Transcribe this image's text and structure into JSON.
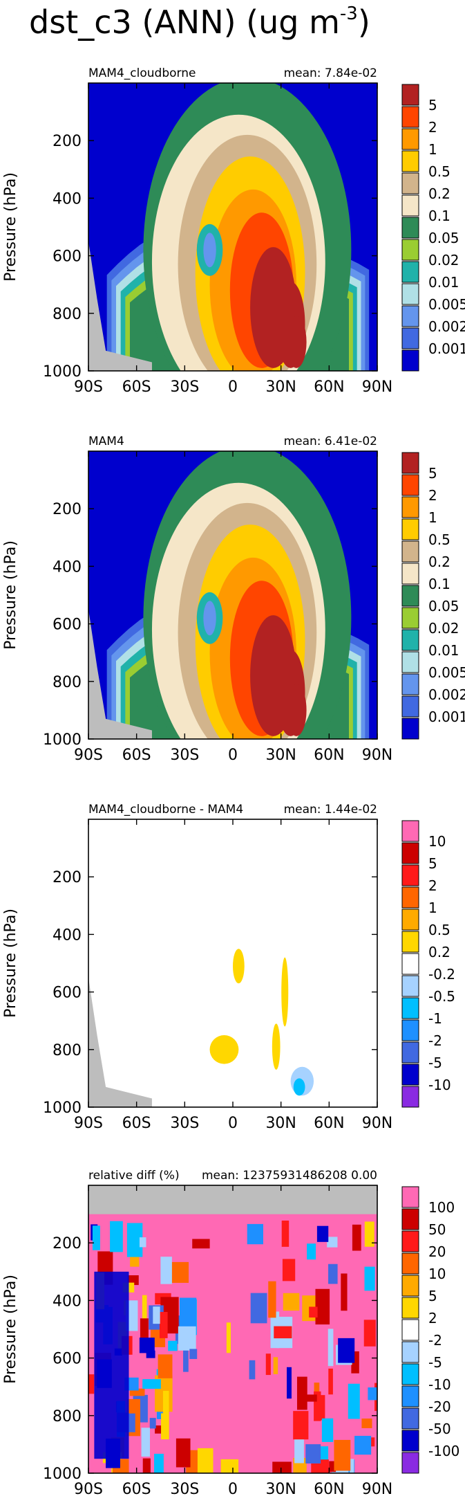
{
  "figure": {
    "title": "dst_c3 (ANN) (ug m",
    "title_superscript": "-3",
    "title_close": ")"
  },
  "chart_data": [
    {
      "type": "heatmap",
      "panel_label": "MAM4_cloudborne",
      "mean_text": "mean: 7.84e-02",
      "ylabel": "Pressure (hPa)",
      "x_ticks": [
        "90S",
        "60S",
        "30S",
        "0",
        "30N",
        "60N",
        "90N"
      ],
      "x_values": [
        -90,
        -60,
        -30,
        0,
        30,
        60,
        90
      ],
      "y_ticks": [
        "200",
        "400",
        "600",
        "800",
        "1000"
      ],
      "y_values": [
        200,
        400,
        600,
        800,
        1000
      ],
      "xlim": [
        -90,
        90
      ],
      "ylim": [
        1000,
        0
      ],
      "colorbar_labels": [
        "5",
        "2",
        "1",
        "0.5",
        "0.2",
        "0.1",
        "0.05",
        "0.02",
        "0.01",
        "0.005",
        "0.002",
        "0.001"
      ],
      "colorbar_colors": [
        "#b22222",
        "#ff4500",
        "#ff9900",
        "#ffcc00",
        "#d2b48c",
        "#f5e6c8",
        "#2e8b57",
        "#9acd32",
        "#20b2aa",
        "#b0e0e6",
        "#6495ed",
        "#4169e1",
        "#0000cd"
      ]
    },
    {
      "type": "heatmap",
      "panel_label": "MAM4",
      "mean_text": "mean: 6.41e-02",
      "ylabel": "Pressure (hPa)",
      "x_ticks": [
        "90S",
        "60S",
        "30S",
        "0",
        "30N",
        "60N",
        "90N"
      ],
      "x_values": [
        -90,
        -60,
        -30,
        0,
        30,
        60,
        90
      ],
      "y_ticks": [
        "200",
        "400",
        "600",
        "800",
        "1000"
      ],
      "y_values": [
        200,
        400,
        600,
        800,
        1000
      ],
      "xlim": [
        -90,
        90
      ],
      "ylim": [
        1000,
        0
      ],
      "colorbar_labels": [
        "5",
        "2",
        "1",
        "0.5",
        "0.2",
        "0.1",
        "0.05",
        "0.02",
        "0.01",
        "0.005",
        "0.002",
        "0.001"
      ],
      "colorbar_colors": [
        "#b22222",
        "#ff4500",
        "#ff9900",
        "#ffcc00",
        "#d2b48c",
        "#f5e6c8",
        "#2e8b57",
        "#9acd32",
        "#20b2aa",
        "#b0e0e6",
        "#6495ed",
        "#4169e1",
        "#0000cd"
      ]
    },
    {
      "type": "heatmap",
      "panel_label": "MAM4_cloudborne - MAM4",
      "mean_text": "mean: 1.44e-02",
      "ylabel": "Pressure (hPa)",
      "x_ticks": [
        "90S",
        "60S",
        "30S",
        "0",
        "30N",
        "60N",
        "90N"
      ],
      "x_values": [
        -90,
        -60,
        -30,
        0,
        30,
        60,
        90
      ],
      "y_ticks": [
        "200",
        "400",
        "600",
        "800",
        "1000"
      ],
      "y_values": [
        200,
        400,
        600,
        800,
        1000
      ],
      "xlim": [
        -90,
        90
      ],
      "ylim": [
        1000,
        0
      ],
      "colorbar_labels": [
        "10",
        "5",
        "2",
        "1",
        "0.5",
        "0.2",
        "-0.2",
        "-0.5",
        "-1",
        "-2",
        "-5",
        "-10"
      ],
      "colorbar_colors": [
        "#ff69b4",
        "#cc0000",
        "#ff1a1a",
        "#ff6600",
        "#ffaa00",
        "#ffd700",
        "#ffffff",
        "#a6d2ff",
        "#00bfff",
        "#1e90ff",
        "#4169e1",
        "#0000cd",
        "#8a2be2"
      ]
    },
    {
      "type": "heatmap",
      "panel_label": "relative diff (%)",
      "mean_text": "mean: 12375931486208 0.00",
      "ylabel": "Pressure (hPa)",
      "x_ticks": [
        "90S",
        "60S",
        "30S",
        "0",
        "30N",
        "60N",
        "90N"
      ],
      "x_values": [
        -90,
        -60,
        -30,
        0,
        30,
        60,
        90
      ],
      "y_ticks": [
        "200",
        "400",
        "600",
        "800",
        "1000"
      ],
      "y_values": [
        200,
        400,
        600,
        800,
        1000
      ],
      "xlim": [
        -90,
        90
      ],
      "ylim": [
        1000,
        0
      ],
      "colorbar_labels": [
        "100",
        "50",
        "20",
        "10",
        "5",
        "2",
        "-2",
        "-5",
        "-10",
        "-20",
        "-50",
        "-100"
      ],
      "colorbar_colors": [
        "#ff69b4",
        "#cc0000",
        "#ff1a1a",
        "#ff6600",
        "#ffaa00",
        "#ffd700",
        "#ffffff",
        "#a6d2ff",
        "#00bfff",
        "#1e90ff",
        "#4169e1",
        "#0000cd",
        "#8a2be2"
      ]
    }
  ]
}
